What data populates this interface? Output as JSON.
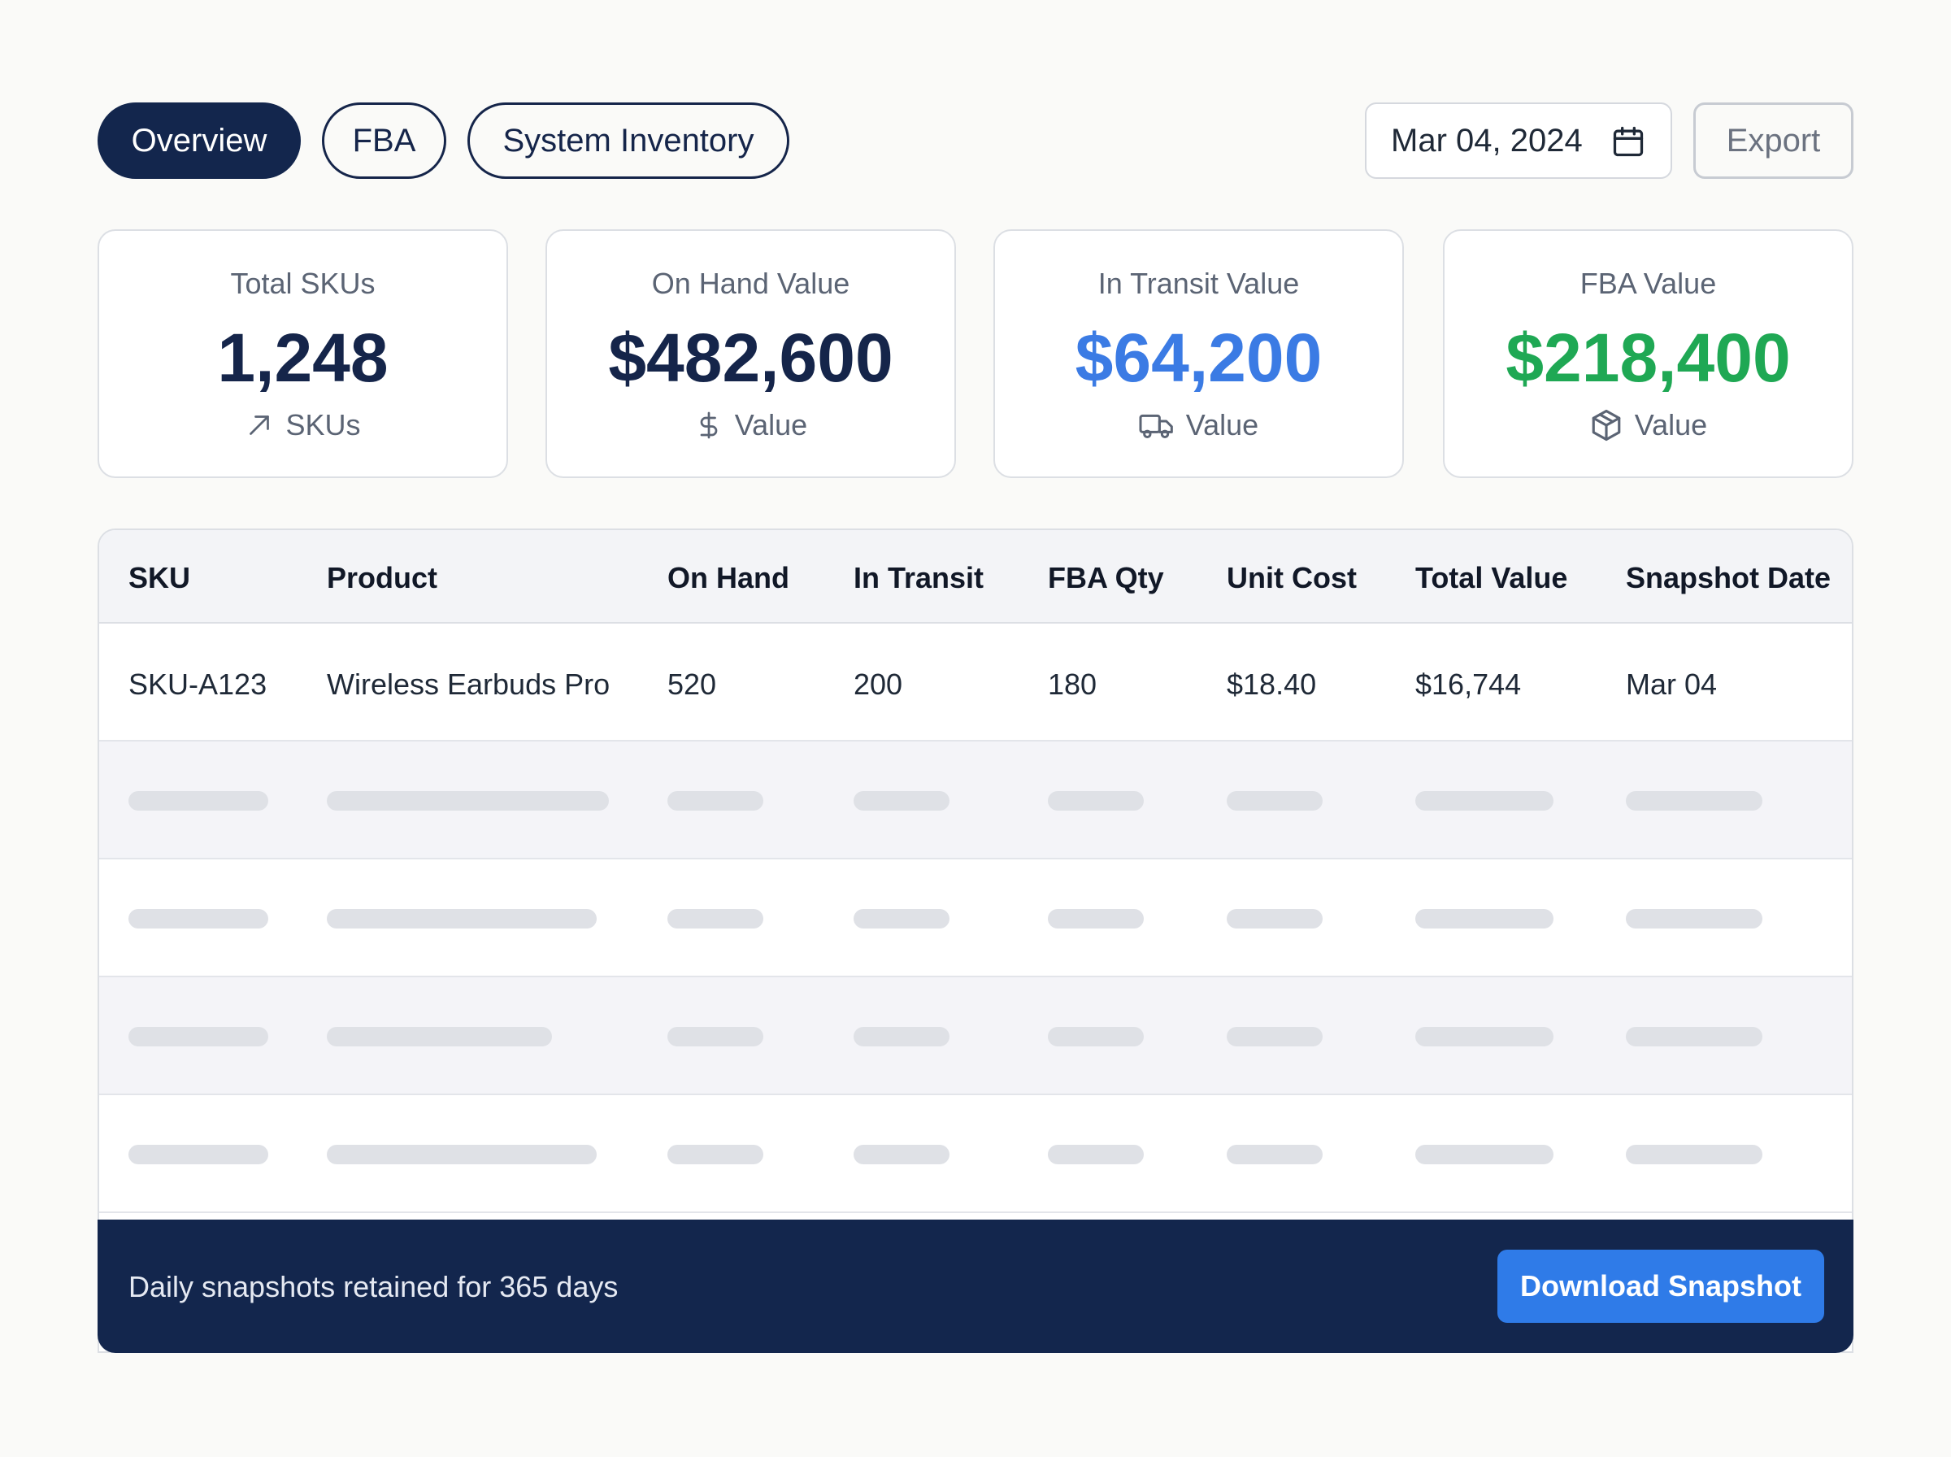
{
  "tabs": [
    {
      "label": "Overview",
      "active": true
    },
    {
      "label": "FBA",
      "active": false
    },
    {
      "label": "System Inventory",
      "active": false
    }
  ],
  "date_picker": {
    "value": "Mar 04, 2024",
    "icon": "calendar-icon"
  },
  "export": {
    "label": "Export"
  },
  "cards": [
    {
      "label": "Total SKUs",
      "value": "1,248",
      "footer": "SKUs",
      "icon": "trend-arrow-icon",
      "color": "#15254a"
    },
    {
      "label": "On Hand Value",
      "value": "$482,600",
      "footer": "Value",
      "icon": "dollar-icon",
      "color": "#15254a"
    },
    {
      "label": "In Transit Value",
      "value": "$64,200",
      "footer": "Value",
      "icon": "truck-icon",
      "color": "#3b7be4"
    },
    {
      "label": "FBA Value",
      "value": "$218,400",
      "footer": "Value",
      "icon": "package-icon",
      "color": "#1fa854"
    }
  ],
  "table": {
    "columns": [
      "SKU",
      "Product",
      "On Hand",
      "In Transit",
      "FBA Qty",
      "Unit Cost",
      "Total Value",
      "Snapshot Date"
    ],
    "rows": [
      [
        "SKU-A123",
        "Wireless Earbuds Pro",
        "520",
        "200",
        "180",
        "$18.40",
        "$16,744",
        "Mar 04"
      ]
    ]
  },
  "footer": {
    "note": "Daily snapshots retained for 365 days",
    "button_label": "Download Snapshot"
  },
  "colors": {
    "navy": "#13264d",
    "accent_blue": "#2f7be8",
    "transit_blue": "#3b7be4",
    "fba_green": "#1fa854"
  }
}
